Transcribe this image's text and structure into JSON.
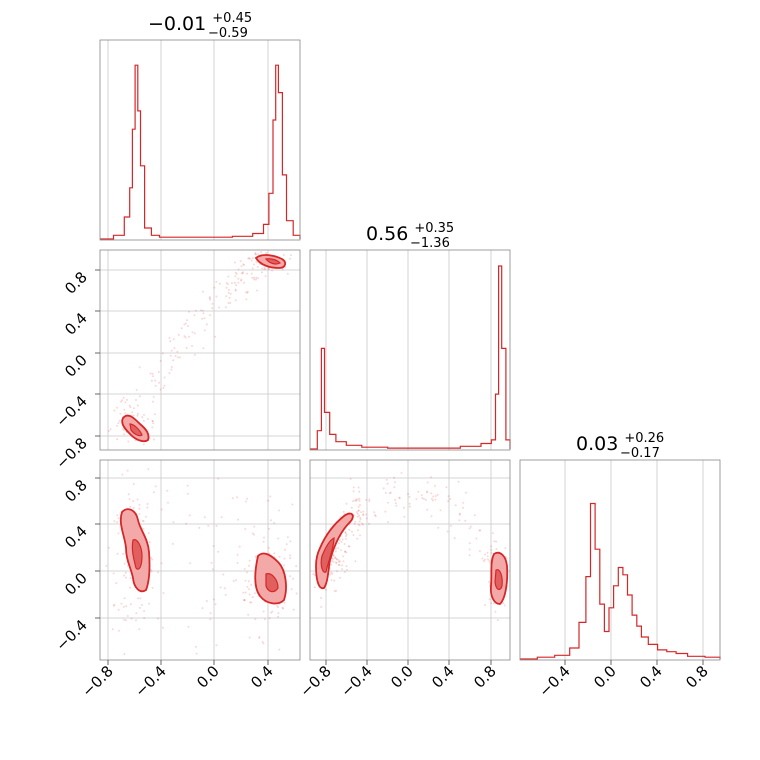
{
  "chart_data": {
    "type": "corner",
    "color": "#d62728",
    "fill_color": "#f4a9a9",
    "grid": true,
    "parameters": [
      {
        "median": "−0.01",
        "plus": "+0.45",
        "minus": "−0.59",
        "range": [
          -0.88,
          0.6
        ]
      },
      {
        "median": "0.56",
        "plus": "+0.35",
        "minus": "−1.36",
        "range": [
          -0.95,
          0.98
        ]
      },
      {
        "median": "0.03",
        "plus": "+0.26",
        "minus": "−0.17",
        "range": [
          -0.75,
          0.98
        ]
      }
    ],
    "ticks": {
      "p0": [
        "−0.8",
        "−0.4",
        "0.0",
        "0.4"
      ],
      "p1": [
        "−0.8",
        "−0.4",
        "0.0",
        "0.4",
        "0.8"
      ],
      "p2": [
        "−0.4",
        "0.0",
        "0.4",
        "0.8"
      ],
      "p0_values": [
        -0.8,
        -0.4,
        0.0,
        0.4
      ],
      "p1_values": [
        -0.8,
        -0.4,
        0.0,
        0.4,
        0.8
      ],
      "p2_values": [
        -0.4,
        0.0,
        0.4,
        0.8
      ],
      "p1_rows": [
        "−0.8",
        "−0.4",
        "0.0",
        "0.4",
        "0.8"
      ],
      "p1_row_values": [
        -0.8,
        -0.4,
        0.0,
        0.4,
        0.8
      ],
      "p2_rows": [
        "−0.4",
        "0.0",
        "0.4",
        "0.8"
      ],
      "p2_row_values": [
        -0.4,
        0.0,
        0.4,
        0.8
      ]
    },
    "histograms": [
      {
        "bins": [
          [
            -0.88,
            0
          ],
          [
            -0.78,
            0.02
          ],
          [
            -0.7,
            0.12
          ],
          [
            -0.66,
            0.28
          ],
          [
            -0.64,
            0.6
          ],
          [
            -0.62,
            0.95
          ],
          [
            -0.6,
            0.7
          ],
          [
            -0.58,
            0.4
          ],
          [
            -0.55,
            0.06
          ],
          [
            -0.5,
            0.02
          ],
          [
            -0.44,
            0.01
          ],
          [
            -0.35,
            0.01
          ],
          [
            -0.2,
            0.01
          ],
          [
            -0.05,
            0.01
          ],
          [
            0.1,
            0.015
          ],
          [
            0.25,
            0.03
          ],
          [
            0.33,
            0.08
          ],
          [
            0.37,
            0.25
          ],
          [
            0.4,
            0.65
          ],
          [
            0.42,
            0.95
          ],
          [
            0.44,
            0.8
          ],
          [
            0.47,
            0.35
          ],
          [
            0.5,
            0.1
          ],
          [
            0.55,
            0.02
          ],
          [
            0.6,
            0
          ]
        ]
      },
      {
        "bins": [
          [
            -0.95,
            0
          ],
          [
            -0.88,
            0.1
          ],
          [
            -0.84,
            0.55
          ],
          [
            -0.81,
            0.2
          ],
          [
            -0.76,
            0.08
          ],
          [
            -0.7,
            0.04
          ],
          [
            -0.6,
            0.02
          ],
          [
            -0.45,
            0.01
          ],
          [
            -0.2,
            0.005
          ],
          [
            0.2,
            0.005
          ],
          [
            0.5,
            0.015
          ],
          [
            0.7,
            0.03
          ],
          [
            0.8,
            0.05
          ],
          [
            0.84,
            0.3
          ],
          [
            0.87,
            1.0
          ],
          [
            0.9,
            0.55
          ],
          [
            0.94,
            0.05
          ],
          [
            0.98,
            0
          ]
        ]
      },
      {
        "bins": [
          [
            -0.75,
            0
          ],
          [
            -0.6,
            0.01
          ],
          [
            -0.45,
            0.02
          ],
          [
            -0.32,
            0.06
          ],
          [
            -0.24,
            0.2
          ],
          [
            -0.18,
            0.45
          ],
          [
            -0.14,
            0.85
          ],
          [
            -0.1,
            0.6
          ],
          [
            -0.06,
            0.3
          ],
          [
            -0.02,
            0.15
          ],
          [
            0.02,
            0.28
          ],
          [
            0.06,
            0.4
          ],
          [
            0.1,
            0.5
          ],
          [
            0.14,
            0.46
          ],
          [
            0.18,
            0.35
          ],
          [
            0.22,
            0.24
          ],
          [
            0.26,
            0.18
          ],
          [
            0.3,
            0.12
          ],
          [
            0.36,
            0.08
          ],
          [
            0.44,
            0.05
          ],
          [
            0.52,
            0.04
          ],
          [
            0.6,
            0.03
          ],
          [
            0.7,
            0.015
          ],
          [
            0.85,
            0.01
          ],
          [
            0.98,
            0
          ]
        ]
      }
    ]
  }
}
